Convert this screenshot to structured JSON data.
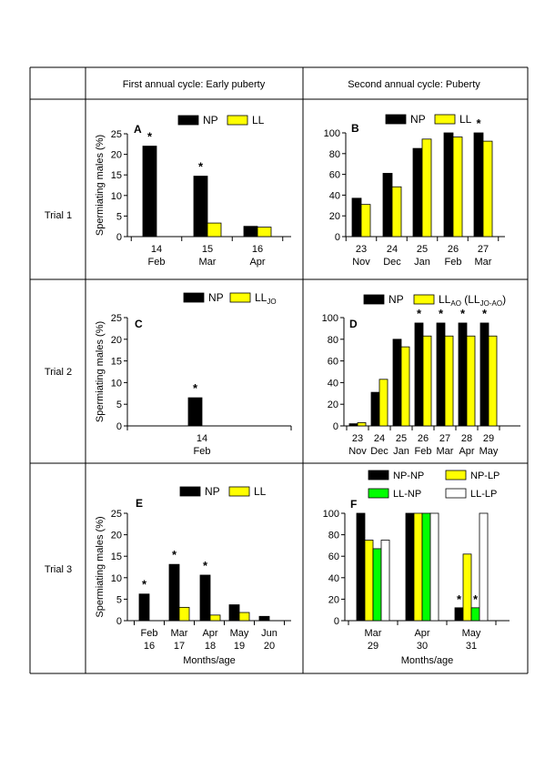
{
  "header": {
    "col1": "First annual cycle: Early puberty",
    "col2": "Second annual cycle: Puberty"
  },
  "rows": [
    "Trial 1",
    "Trial 2",
    "Trial 3"
  ],
  "colors": {
    "NP": "#000000",
    "LL": "#ffff00",
    "NP-NP": "#000000",
    "NP-LP": "#ffff00",
    "LL-NP": "#00ff00",
    "LL-LP": "#ffffff",
    "axis": "#000000"
  },
  "chart_data": [
    {
      "id": "A",
      "type": "bar",
      "panel_label": "A",
      "ylabel": "Spermiating males (%)",
      "ylim": [
        0,
        25
      ],
      "yticks": [
        0,
        5,
        10,
        15,
        20,
        25
      ],
      "categories": [
        [
          "14",
          "Feb"
        ],
        [
          "15",
          "Mar"
        ],
        [
          "16",
          "Apr"
        ]
      ],
      "series": [
        {
          "name": "NP",
          "values": [
            22,
            14.7,
            2.5
          ]
        },
        {
          "name": "LL",
          "values": [
            0,
            3.3,
            2.3
          ]
        }
      ],
      "stars": [
        [
          0,
          0
        ],
        [
          1,
          0
        ]
      ]
    },
    {
      "id": "B",
      "type": "bar",
      "panel_label": "B",
      "ylabel": "",
      "ylim": [
        0,
        100
      ],
      "yticks": [
        0,
        20,
        40,
        60,
        80,
        100
      ],
      "categories": [
        [
          "23",
          "Nov"
        ],
        [
          "24",
          "Dec"
        ],
        [
          "25",
          "Jan"
        ],
        [
          "26",
          "Feb"
        ],
        [
          "27",
          "Mar"
        ]
      ],
      "series": [
        {
          "name": "NP",
          "values": [
            37,
            61,
            85,
            100,
            100
          ]
        },
        {
          "name": "LL",
          "values": [
            31,
            48,
            94,
            96,
            92
          ]
        }
      ],
      "stars": [
        [
          4,
          0
        ]
      ]
    },
    {
      "id": "C",
      "type": "bar",
      "panel_label": "C",
      "ylabel": "Spermiating males (%)",
      "ylim": [
        0,
        25
      ],
      "yticks": [
        0,
        5,
        10,
        15,
        20,
        25
      ],
      "categories": [
        [
          "14",
          "Feb"
        ]
      ],
      "series": [
        {
          "name": "NP",
          "values": [
            6.5
          ]
        },
        {
          "name": "LL",
          "sub": "JO",
          "values": [
            0
          ]
        }
      ],
      "stars": [
        [
          0,
          0
        ]
      ]
    },
    {
      "id": "D",
      "type": "bar",
      "panel_label": "D",
      "ylabel": "",
      "ylim": [
        0,
        100
      ],
      "yticks": [
        0,
        20,
        40,
        60,
        80,
        100
      ],
      "categories": [
        [
          "23",
          "Nov"
        ],
        [
          "24",
          "Dec"
        ],
        [
          "25",
          "Jan"
        ],
        [
          "26",
          "Feb"
        ],
        [
          "27",
          "Mar"
        ],
        [
          "28",
          "Apr"
        ],
        [
          "29",
          "May"
        ]
      ],
      "series": [
        {
          "name": "NP",
          "values": [
            2,
            31,
            80,
            95,
            95,
            95,
            95
          ]
        },
        {
          "name": "LL",
          "sub": "AO",
          "extra": " (LL",
          "extra_sub": "JO-AO",
          "extra_end": ")",
          "values": [
            3,
            43,
            73,
            83,
            83,
            83,
            83
          ]
        }
      ],
      "stars": [
        [
          3,
          0
        ],
        [
          4,
          0
        ],
        [
          5,
          0
        ],
        [
          6,
          0
        ]
      ]
    },
    {
      "id": "E",
      "type": "bar",
      "panel_label": "E",
      "ylabel": "Spermiating males (%)",
      "xlabel": "Months/age",
      "ylim": [
        0,
        25
      ],
      "yticks": [
        0,
        5,
        10,
        15,
        20,
        25
      ],
      "categories": [
        [
          "Feb",
          "16"
        ],
        [
          "Mar",
          "17"
        ],
        [
          "Apr",
          "18"
        ],
        [
          "May",
          "19"
        ],
        [
          "Jun",
          "20"
        ]
      ],
      "series": [
        {
          "name": "NP",
          "values": [
            6.2,
            13.1,
            10.6,
            3.7,
            1.0
          ]
        },
        {
          "name": "LL",
          "values": [
            0,
            3.1,
            1.3,
            1.9,
            0
          ]
        }
      ],
      "stars": [
        [
          0,
          0
        ],
        [
          1,
          0
        ],
        [
          2,
          0
        ]
      ]
    },
    {
      "id": "F",
      "type": "bar",
      "panel_label": "F",
      "ylabel": "",
      "xlabel": "Months/age",
      "ylim": [
        0,
        100
      ],
      "yticks": [
        0,
        20,
        40,
        60,
        80,
        100
      ],
      "categories": [
        [
          "Mar",
          "29"
        ],
        [
          "Apr",
          "30"
        ],
        [
          "May",
          "31"
        ]
      ],
      "series": [
        {
          "name": "NP-NP",
          "values": [
            100,
            100,
            12
          ]
        },
        {
          "name": "NP-LP",
          "values": [
            75,
            100,
            62
          ]
        },
        {
          "name": "LL-NP",
          "values": [
            67,
            100,
            12
          ]
        },
        {
          "name": "LL-LP",
          "values": [
            75,
            100,
            100
          ]
        }
      ],
      "stars": [
        [
          2,
          0
        ],
        [
          2,
          2
        ]
      ]
    }
  ]
}
